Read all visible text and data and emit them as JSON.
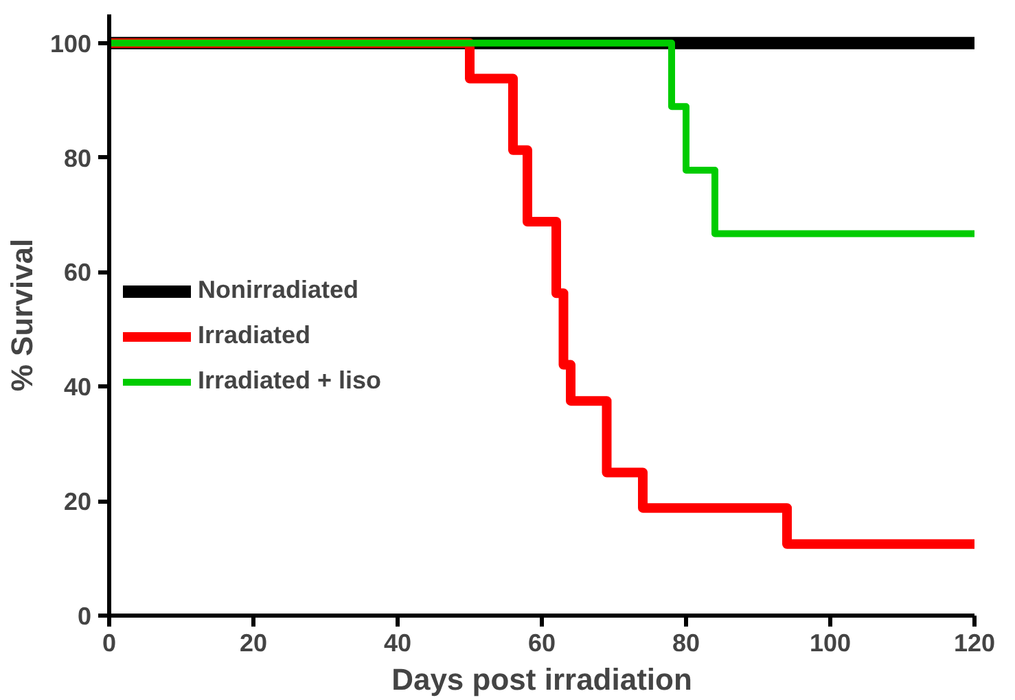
{
  "chart_data": {
    "type": "step",
    "xlabel": "Days post irradiation",
    "ylabel": "% Survival",
    "xlim": [
      0,
      120
    ],
    "ylim": [
      0,
      105
    ],
    "xticks": [
      0,
      20,
      40,
      60,
      80,
      100,
      120
    ],
    "yticks": [
      0,
      20,
      40,
      60,
      80,
      100
    ],
    "grid": false,
    "legend": "left",
    "line_style": "solid",
    "marker": "none",
    "series": [
      {
        "name": "Nonirradiated",
        "color": "#000000",
        "x": [
          0,
          120
        ],
        "values": [
          100,
          100
        ]
      },
      {
        "name": "Irradiated",
        "color": "#ff0000",
        "x": [
          0,
          50,
          56,
          58,
          62,
          63,
          64,
          69,
          74,
          94,
          120
        ],
        "values": [
          100,
          93.8,
          81.3,
          68.8,
          56.3,
          43.8,
          37.5,
          25,
          18.8,
          12.5,
          12.5
        ]
      },
      {
        "name": "Irradiated + liso",
        "color": "#00cc00",
        "x": [
          0,
          78,
          80,
          84,
          120
        ],
        "values": [
          100,
          88.9,
          77.8,
          66.7,
          66.7
        ]
      }
    ]
  }
}
